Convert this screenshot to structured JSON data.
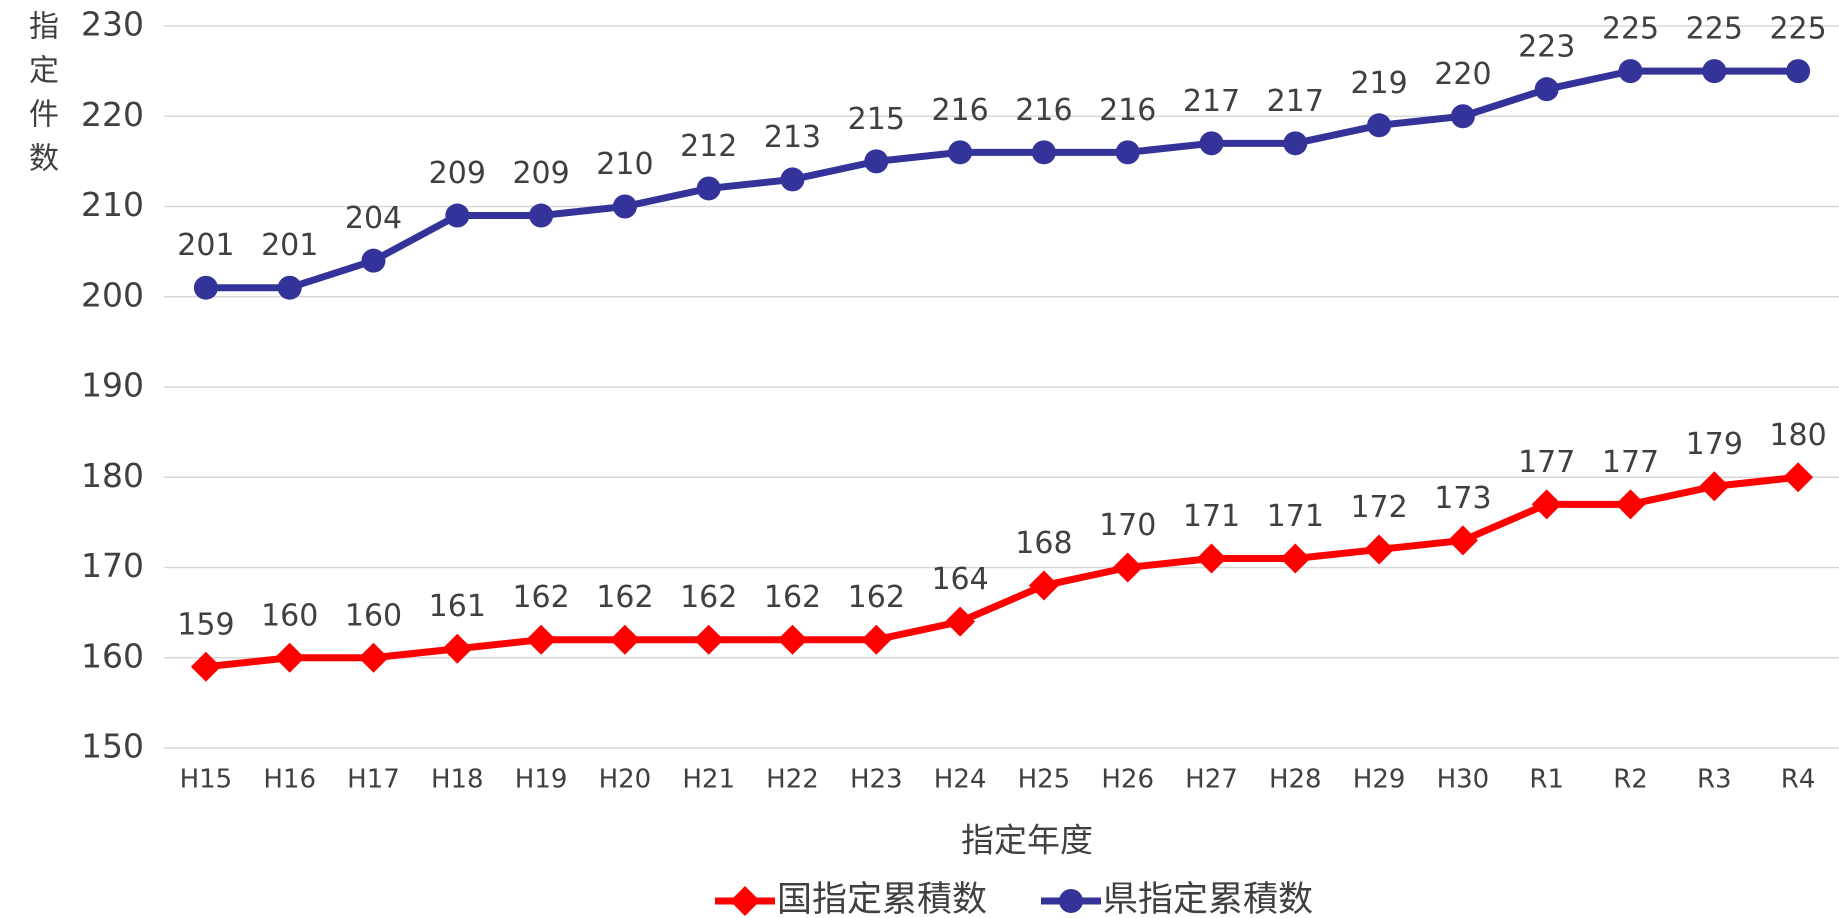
{
  "chart_data": {
    "type": "line",
    "x_label": "指定年度",
    "y_label": "指定件数",
    "categories": [
      "H15",
      "H16",
      "H17",
      "H18",
      "H19",
      "H20",
      "H21",
      "H22",
      "H23",
      "H24",
      "H25",
      "H26",
      "H27",
      "H28",
      "H29",
      "H30",
      "R1",
      "R2",
      "R3",
      "R4"
    ],
    "series": [
      {
        "name": "国指定累積数",
        "color": "#ff0000",
        "marker": "diamond",
        "values": [
          159,
          160,
          160,
          161,
          162,
          162,
          162,
          162,
          162,
          164,
          168,
          170,
          171,
          171,
          172,
          173,
          177,
          177,
          179,
          180
        ]
      },
      {
        "name": "県指定累積数",
        "color": "#333399",
        "marker": "circle",
        "values": [
          201,
          201,
          204,
          209,
          209,
          210,
          212,
          213,
          215,
          216,
          216,
          216,
          217,
          217,
          219,
          220,
          223,
          225,
          225,
          225
        ]
      }
    ],
    "ylim": [
      150,
      230
    ],
    "yticks": [
      150,
      160,
      170,
      180,
      190,
      200,
      210,
      220,
      230
    ],
    "grid": true,
    "legend": "bottom"
  }
}
